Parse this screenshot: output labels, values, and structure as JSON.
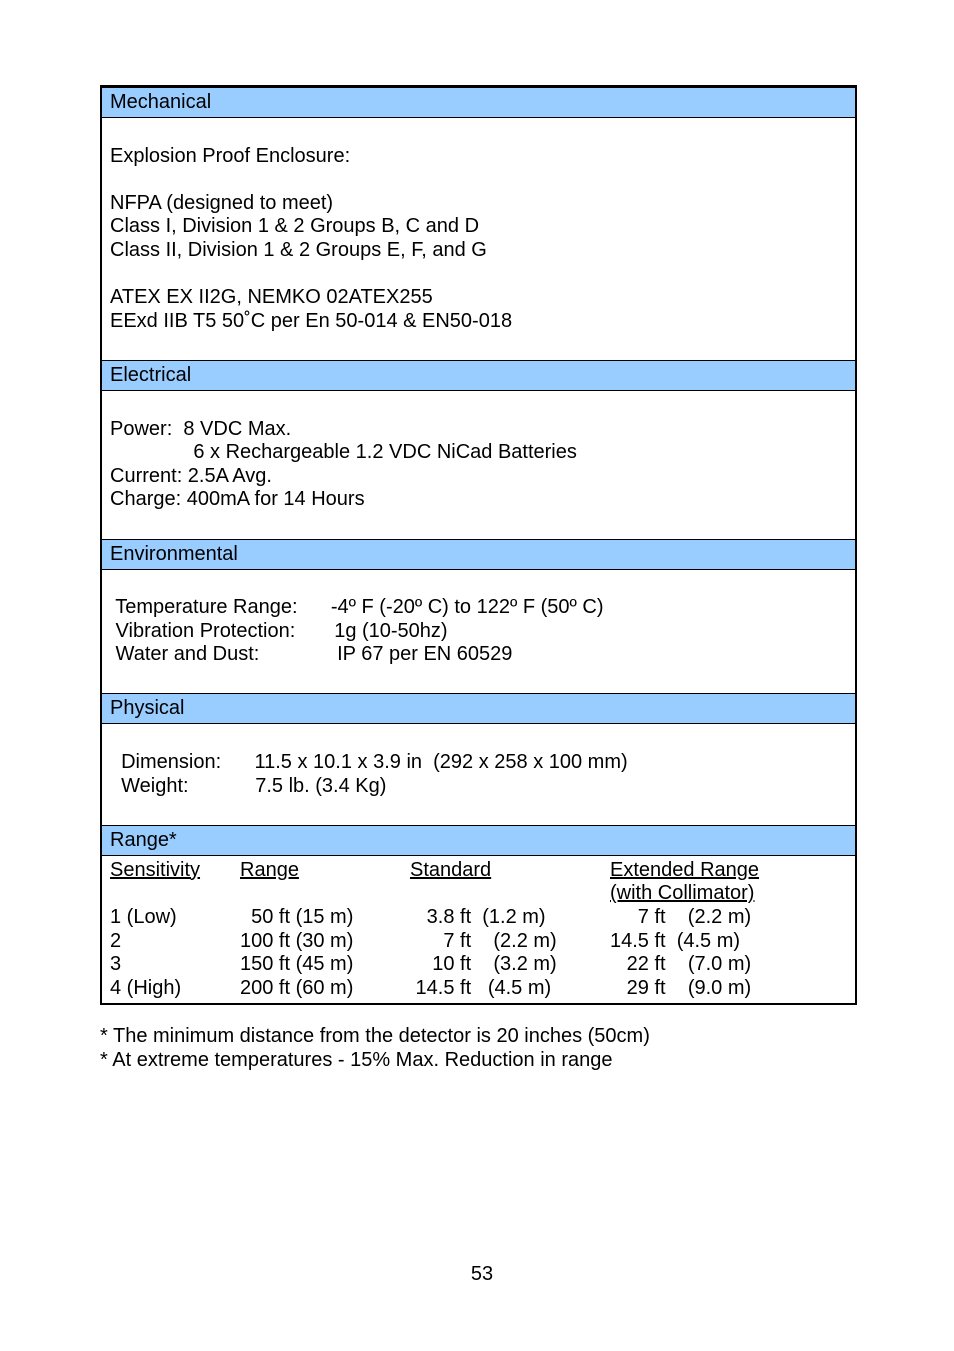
{
  "section_headers": {
    "mechanical": "Mechanical",
    "electrical": "Electrical",
    "environmental": "Environmental",
    "physical": "Physical",
    "range": "Range*"
  },
  "mechanical": {
    "l1": "Explosion Proof Enclosure:",
    "l2": "NFPA (designed to meet)",
    "l3": "Class I, Division 1 & 2 Groups B, C and D",
    "l4": "Class II, Division 1 & 2 Groups E, F, and G",
    "l5": "ATEX EX II2G, NEMKO 02ATEX255",
    "l6": "EExd IIB T5 50˚C per En 50-014 & EN50-018"
  },
  "electrical": {
    "l1": "Power:  8 VDC Max.",
    "l2": "               6 x Rechargeable 1.2 VDC NiCad Batteries",
    "l3": "Current: 2.5A Avg.",
    "l4": "Charge: 400mA for 14 Hours"
  },
  "environmental": {
    "l1": " Temperature Range:      -4º F (-20º C) to 122º F (50º C)",
    "l2": " Vibration Protection:       1g (10-50hz)",
    "l3": " Water and Dust:              IP 67 per EN 60529"
  },
  "physical": {
    "l1": "  Dimension:      11.5 x 10.1 x 3.9 in  (292 x 258 x 100 mm)",
    "l2": "  Weight:            7.5 lb. (3.4 Kg)"
  },
  "range": {
    "headers": {
      "sensitivity": "Sensitivity",
      "range_col": "Range",
      "standard": "Standard",
      "extended": "Extended Range",
      "with_coll": "(with Collimator)"
    },
    "rows": [
      {
        "s": "1 (Low)",
        "r": "  50 ft (15 m)",
        "std": "   3.8 ft  (1.2 m)",
        "ext": "     7 ft    (2.2 m)"
      },
      {
        "s": "2",
        "r": "100 ft (30 m)",
        "std": "      7 ft    (2.2 m)",
        "ext": "14.5 ft  (4.5 m)"
      },
      {
        "s": "3",
        "r": "150 ft (45 m)",
        "std": "    10 ft    (3.2 m)",
        "ext": "   22 ft    (7.0 m)"
      },
      {
        "s": "4 (High)",
        "r": "200 ft (60 m)",
        "std": " 14.5 ft   (4.5 m)",
        "ext": "   29 ft    (9.0 m)"
      }
    ]
  },
  "footnotes": {
    "f1": "* The minimum distance from the detector is 20 inches (50cm)",
    "f2": "* At extreme temperatures - 15% Max. Reduction in range"
  },
  "page_number": "53"
}
